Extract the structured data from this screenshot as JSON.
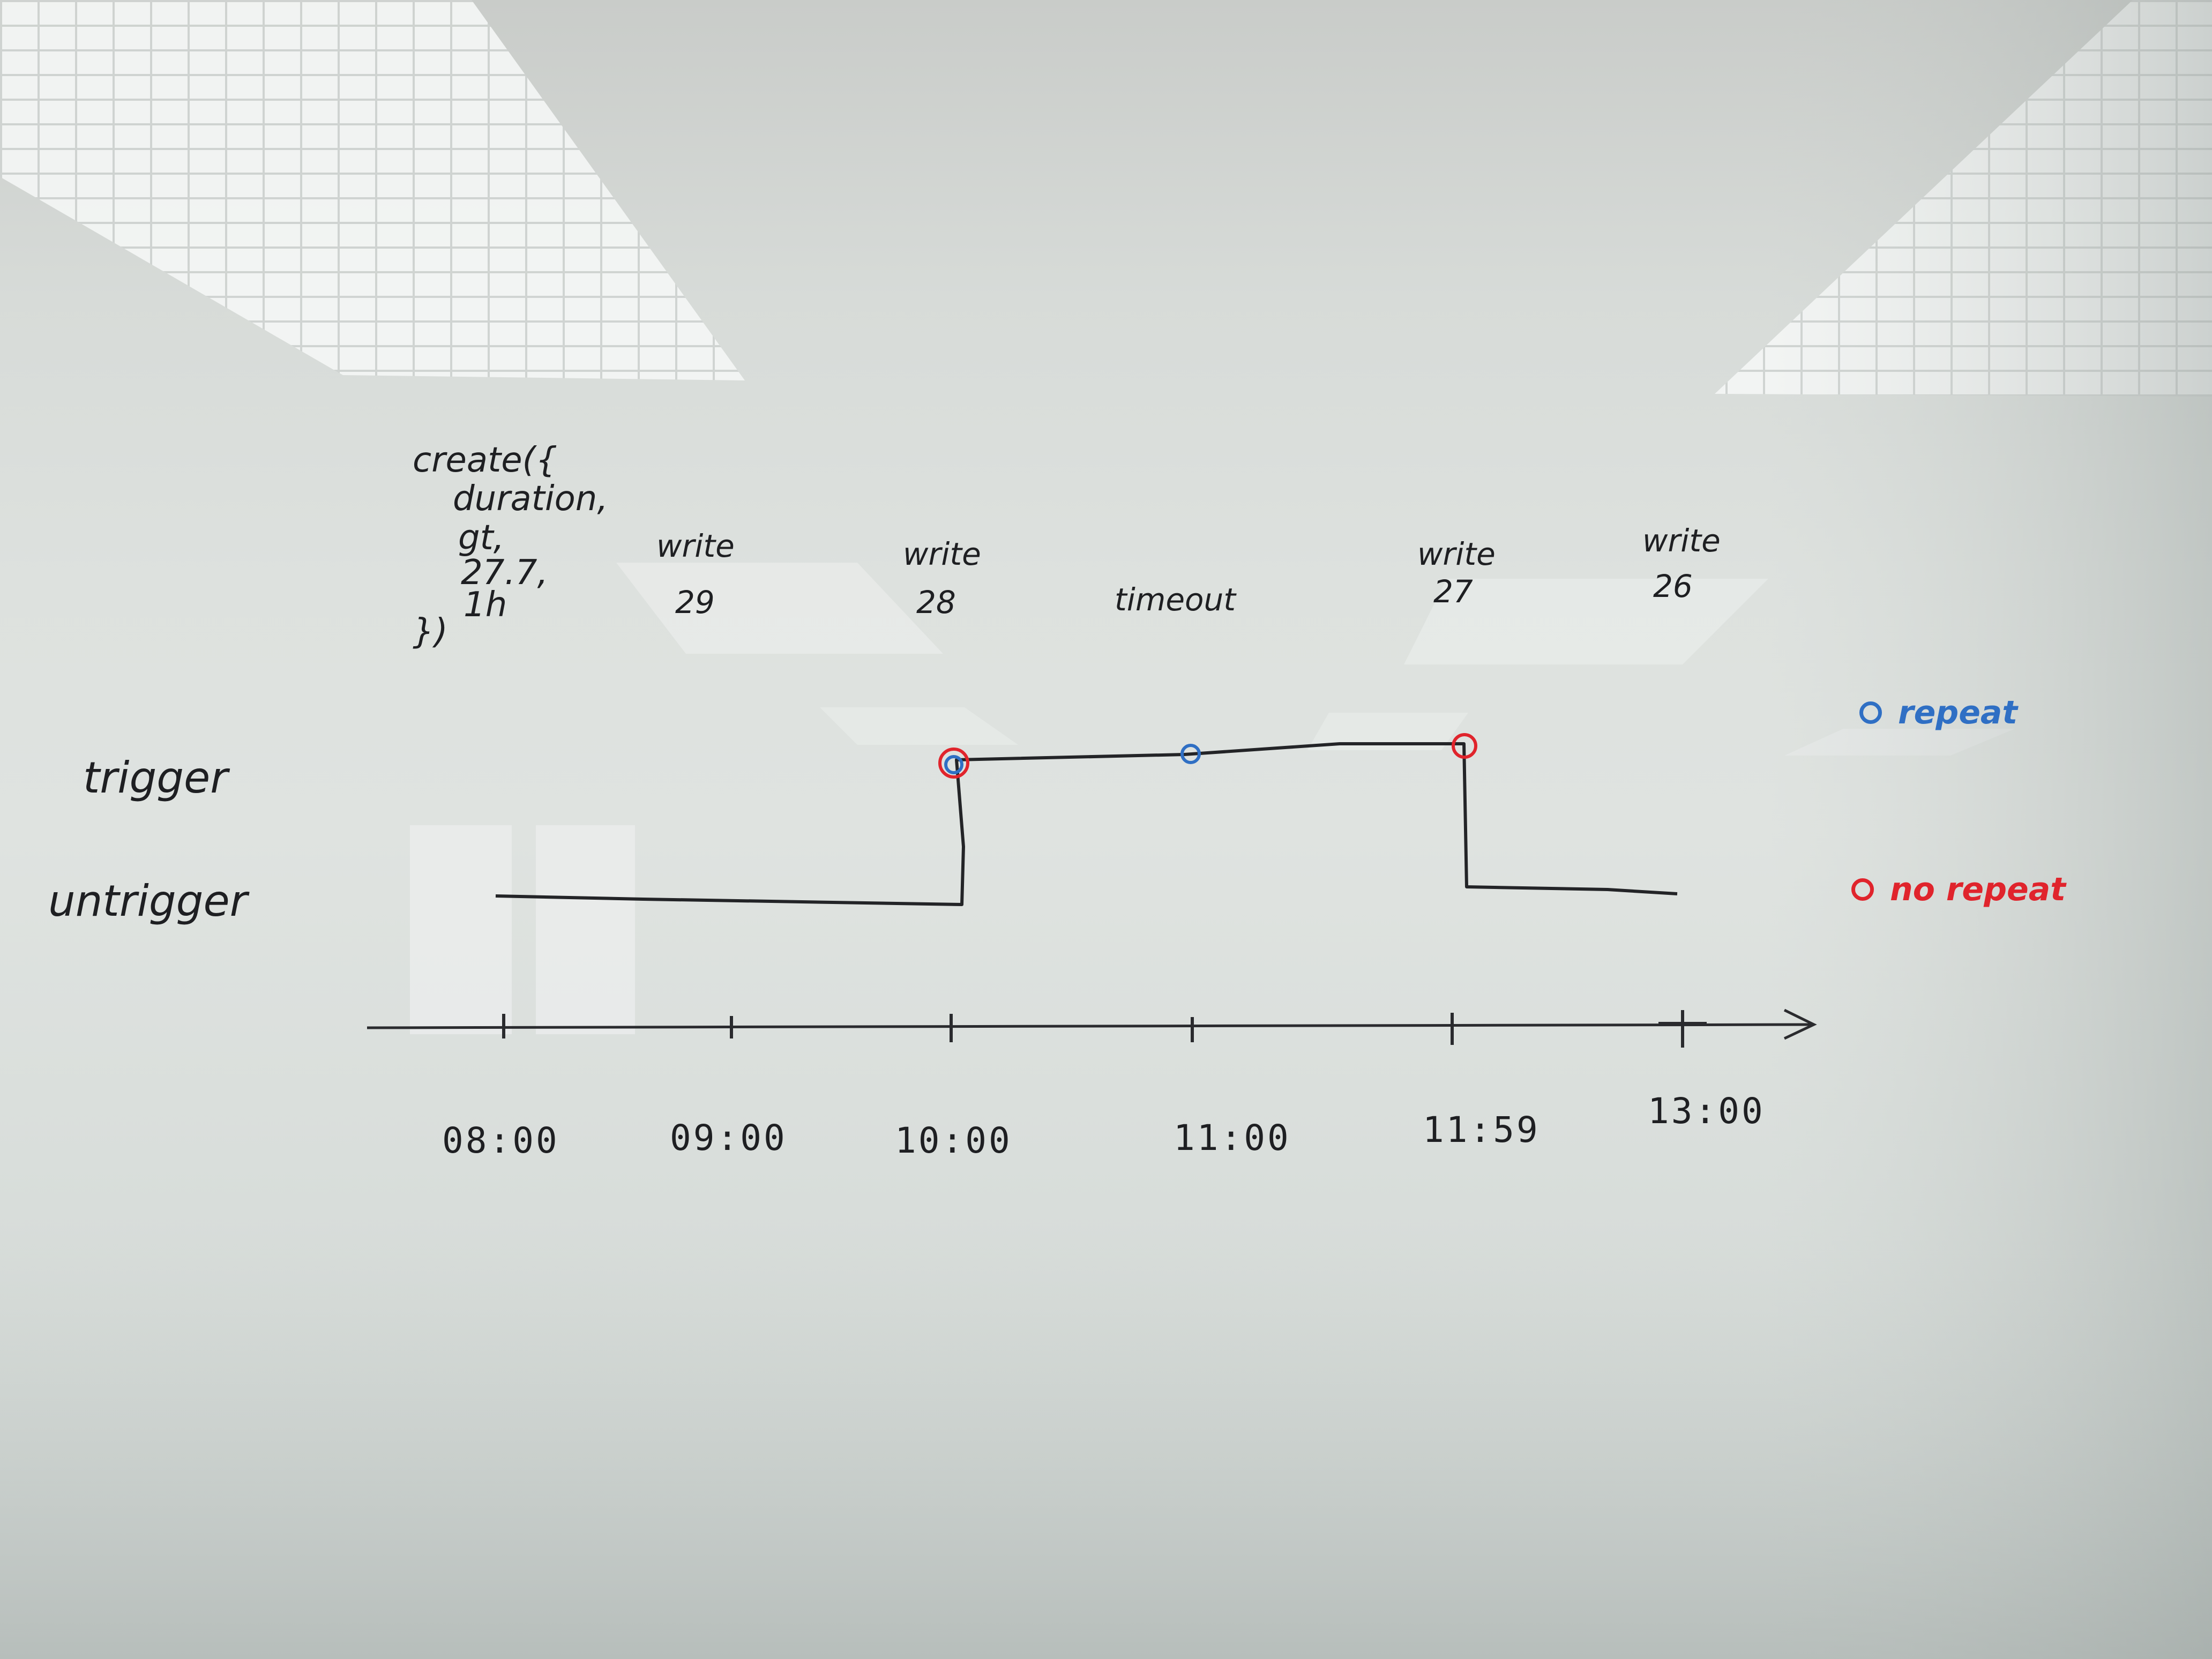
{
  "whiteboard": {
    "code_lines": [
      "create({",
      "duration,",
      "gt,",
      "27.7,",
      "1h",
      "})"
    ],
    "events": [
      {
        "label": "write",
        "value": "29"
      },
      {
        "label": "write",
        "value": "28"
      },
      {
        "label": "timeout",
        "value": ""
      },
      {
        "label": "write",
        "value": "27"
      },
      {
        "label": "write",
        "value": "26"
      }
    ],
    "states": {
      "high": "trigger",
      "low": "untrigger"
    },
    "time_labels": [
      "08:00",
      "09:00",
      "10:00",
      "11:00",
      "11:59",
      "13:00"
    ],
    "legend": [
      {
        "label": "repeat",
        "color": "#2f6fc4"
      },
      {
        "label": "no repeat",
        "color": "#e0242c"
      }
    ],
    "colors": {
      "ink": "#1e1f22",
      "repeat": "#2f6fc4",
      "no_repeat": "#e0242c"
    }
  }
}
